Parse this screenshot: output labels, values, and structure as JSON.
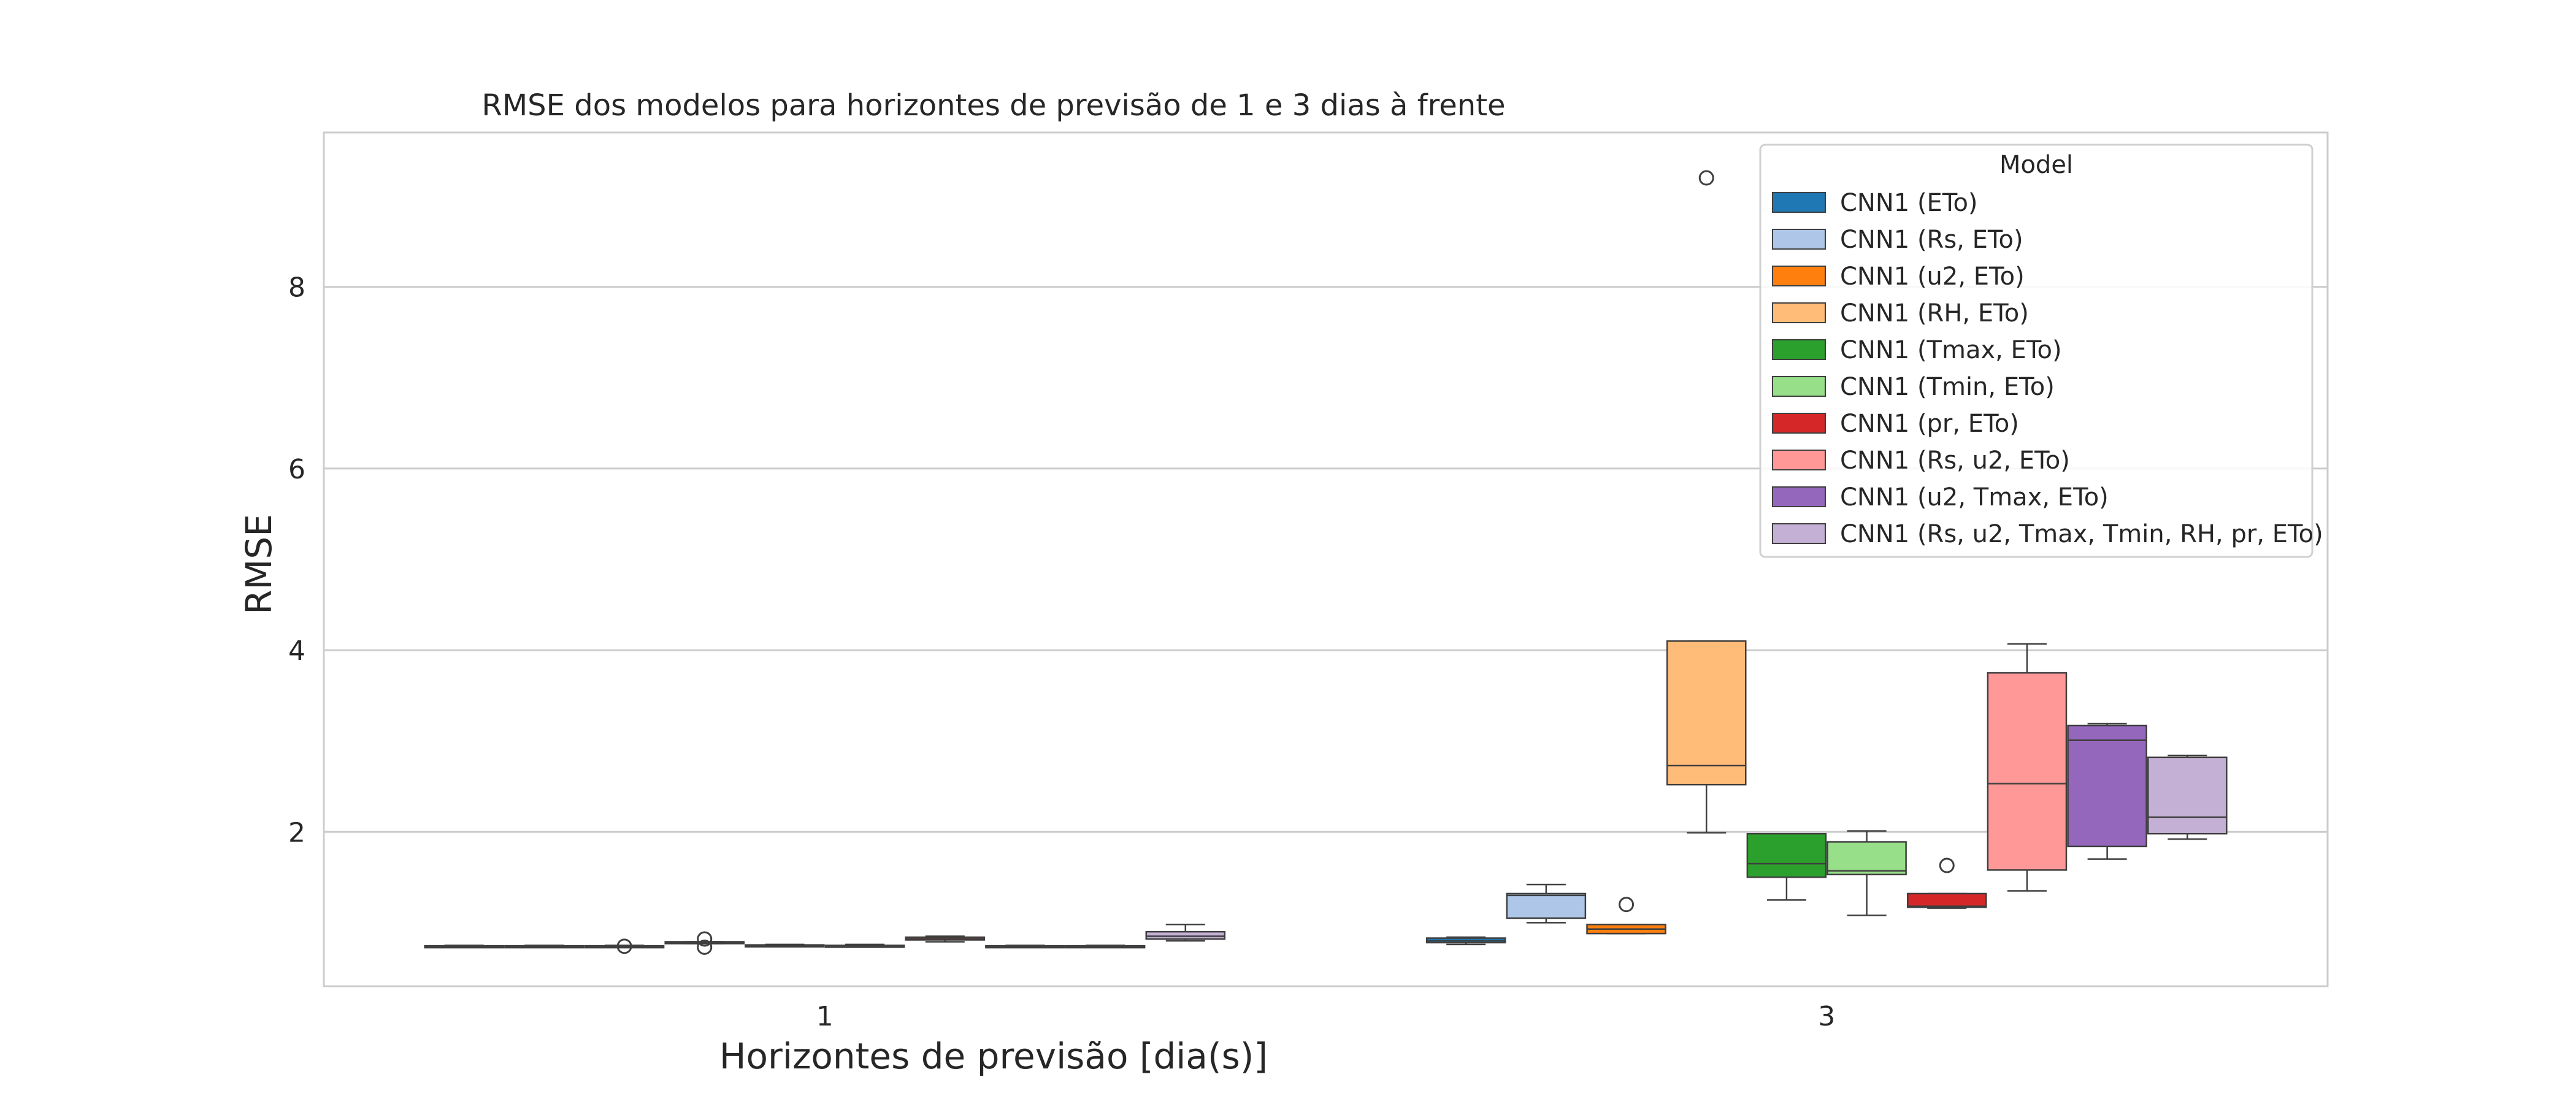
{
  "chart_data": {
    "type": "box",
    "title": "RMSE dos modelos para horizontes de previsão de 1 e 3 dias à frente",
    "xlabel": "Horizontes de previsão [dia(s)]",
    "ylabel": "RMSE",
    "categories": [
      "1",
      "3"
    ],
    "ylim": [
      0.3,
      9.7
    ],
    "yticks": [
      2,
      4,
      6,
      8
    ],
    "grid": "horizontal",
    "legend": {
      "title": "Model",
      "position": "top-right"
    },
    "series": [
      {
        "name": "CNN1 (ETo)",
        "color": "#1f77b4",
        "boxes": [
          {
            "whislo": 0.73,
            "q1": 0.74,
            "med": 0.74,
            "q3": 0.745,
            "whishi": 0.75,
            "fliers": []
          },
          {
            "whislo": 0.76,
            "q1": 0.78,
            "med": 0.8,
            "q3": 0.83,
            "whishi": 0.84,
            "fliers": []
          }
        ]
      },
      {
        "name": "CNN1 (Rs, ETo)",
        "color": "#aec7e8",
        "boxes": [
          {
            "whislo": 0.735,
            "q1": 0.74,
            "med": 0.74,
            "q3": 0.745,
            "whishi": 0.75,
            "fliers": []
          },
          {
            "whislo": 1.0,
            "q1": 1.05,
            "med": 1.3,
            "q3": 1.32,
            "whishi": 1.42,
            "fliers": []
          }
        ]
      },
      {
        "name": "CNN1 (u2, ETo)",
        "color": "#ff7f0e",
        "boxes": [
          {
            "whislo": 0.735,
            "q1": 0.74,
            "med": 0.74,
            "q3": 0.745,
            "whishi": 0.75,
            "fliers": [
              0.74
            ]
          },
          {
            "whislo": 0.88,
            "q1": 0.88,
            "med": 0.93,
            "q3": 0.98,
            "whishi": 0.98,
            "fliers": [
              1.2
            ]
          }
        ]
      },
      {
        "name": "CNN1 (RH, ETo)",
        "color": "#ffbb78",
        "boxes": [
          {
            "whislo": 0.77,
            "q1": 0.78,
            "med": 0.78,
            "q3": 0.79,
            "whishi": 0.79,
            "fliers": [
              0.73,
              0.82
            ]
          },
          {
            "whislo": 1.99,
            "q1": 2.52,
            "med": 2.73,
            "q3": 4.1,
            "whishi": 4.1,
            "fliers": [
              9.2
            ]
          }
        ]
      },
      {
        "name": "CNN1 (Tmax, ETo)",
        "color": "#2ca02c",
        "boxes": [
          {
            "whislo": 0.74,
            "q1": 0.745,
            "med": 0.75,
            "q3": 0.755,
            "whishi": 0.76,
            "fliers": []
          },
          {
            "whislo": 1.25,
            "q1": 1.5,
            "med": 1.65,
            "q3": 1.98,
            "whishi": 1.98,
            "fliers": []
          }
        ]
      },
      {
        "name": "CNN1 (Tmin, ETo)",
        "color": "#98df8a",
        "boxes": [
          {
            "whislo": 0.735,
            "q1": 0.74,
            "med": 0.745,
            "q3": 0.75,
            "whishi": 0.76,
            "fliers": []
          },
          {
            "whislo": 1.08,
            "q1": 1.53,
            "med": 1.57,
            "q3": 1.89,
            "whishi": 2.01,
            "fliers": []
          }
        ]
      },
      {
        "name": "CNN1 (pr, ETo)",
        "color": "#d62728",
        "boxes": [
          {
            "whislo": 0.79,
            "q1": 0.81,
            "med": 0.82,
            "q3": 0.84,
            "whishi": 0.85,
            "fliers": []
          },
          {
            "whislo": 1.16,
            "q1": 1.17,
            "med": 1.18,
            "q3": 1.32,
            "whishi": 1.32,
            "fliers": [
              1.63
            ]
          }
        ]
      },
      {
        "name": "CNN1 (Rs, u2, ETo)",
        "color": "#ff9896",
        "boxes": [
          {
            "whislo": 0.735,
            "q1": 0.74,
            "med": 0.74,
            "q3": 0.745,
            "whishi": 0.75,
            "fliers": []
          },
          {
            "whislo": 1.35,
            "q1": 1.58,
            "med": 2.53,
            "q3": 3.75,
            "whishi": 4.07,
            "fliers": []
          }
        ]
      },
      {
        "name": "CNN1 (u2, Tmax, ETo)",
        "color": "#9467bd",
        "boxes": [
          {
            "whislo": 0.735,
            "q1": 0.74,
            "med": 0.74,
            "q3": 0.745,
            "whishi": 0.75,
            "fliers": []
          },
          {
            "whislo": 1.7,
            "q1": 1.84,
            "med": 3.01,
            "q3": 3.17,
            "whishi": 3.19,
            "fliers": []
          }
        ]
      },
      {
        "name": "CNN1 (Rs, u2, Tmax, Tmin, RH, pr, ETo)",
        "color": "#c5b0d5",
        "boxes": [
          {
            "whislo": 0.8,
            "q1": 0.82,
            "med": 0.85,
            "q3": 0.9,
            "whishi": 0.98,
            "fliers": []
          },
          {
            "whislo": 1.92,
            "q1": 1.98,
            "med": 2.16,
            "q3": 2.82,
            "whishi": 2.84,
            "fliers": []
          }
        ]
      }
    ]
  }
}
